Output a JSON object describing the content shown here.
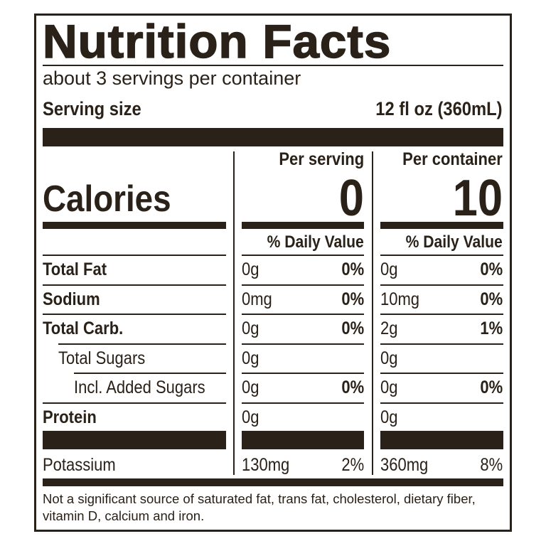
{
  "title": "Nutrition Facts",
  "servings": "about 3 servings per container",
  "serving_size_label": "Serving size",
  "serving_size_value": "12 fl oz (360mL)",
  "per_serving_label": "Per serving",
  "per_container_label": "Per container",
  "calories_label": "Calories",
  "calories_per_serving": "0",
  "calories_per_container": "10",
  "dv_label": "% Daily Value",
  "rows": [
    {
      "name": "Total Fat",
      "s_amt": "0g",
      "s_dv": "0%",
      "c_amt": "0g",
      "c_dv": "0%"
    },
    {
      "name": "Sodium",
      "s_amt": "0mg",
      "s_dv": "0%",
      "c_amt": "10mg",
      "c_dv": "0%"
    },
    {
      "name": "Total Carb.",
      "s_amt": "0g",
      "s_dv": "0%",
      "c_amt": "2g",
      "c_dv": "1%"
    },
    {
      "name": "Total Sugars",
      "s_amt": "0g",
      "s_dv": "",
      "c_amt": "0g",
      "c_dv": ""
    },
    {
      "name": "Incl. Added Sugars",
      "s_amt": "0g",
      "s_dv": "0%",
      "c_amt": "0g",
      "c_dv": "0%"
    },
    {
      "name": "Protein",
      "s_amt": "0g",
      "s_dv": "",
      "c_amt": "0g",
      "c_dv": ""
    }
  ],
  "potassium": {
    "name": "Potassium",
    "s_amt": "130mg",
    "s_dv": "2%",
    "c_amt": "360mg",
    "c_dv": "8%"
  },
  "footnote": "Not a significant source of saturated fat, trans fat, cholesterol, dietary fiber, vitamin D, calcium and iron.",
  "colors": {
    "ink": "#2a2118",
    "background": "#ffffff"
  }
}
